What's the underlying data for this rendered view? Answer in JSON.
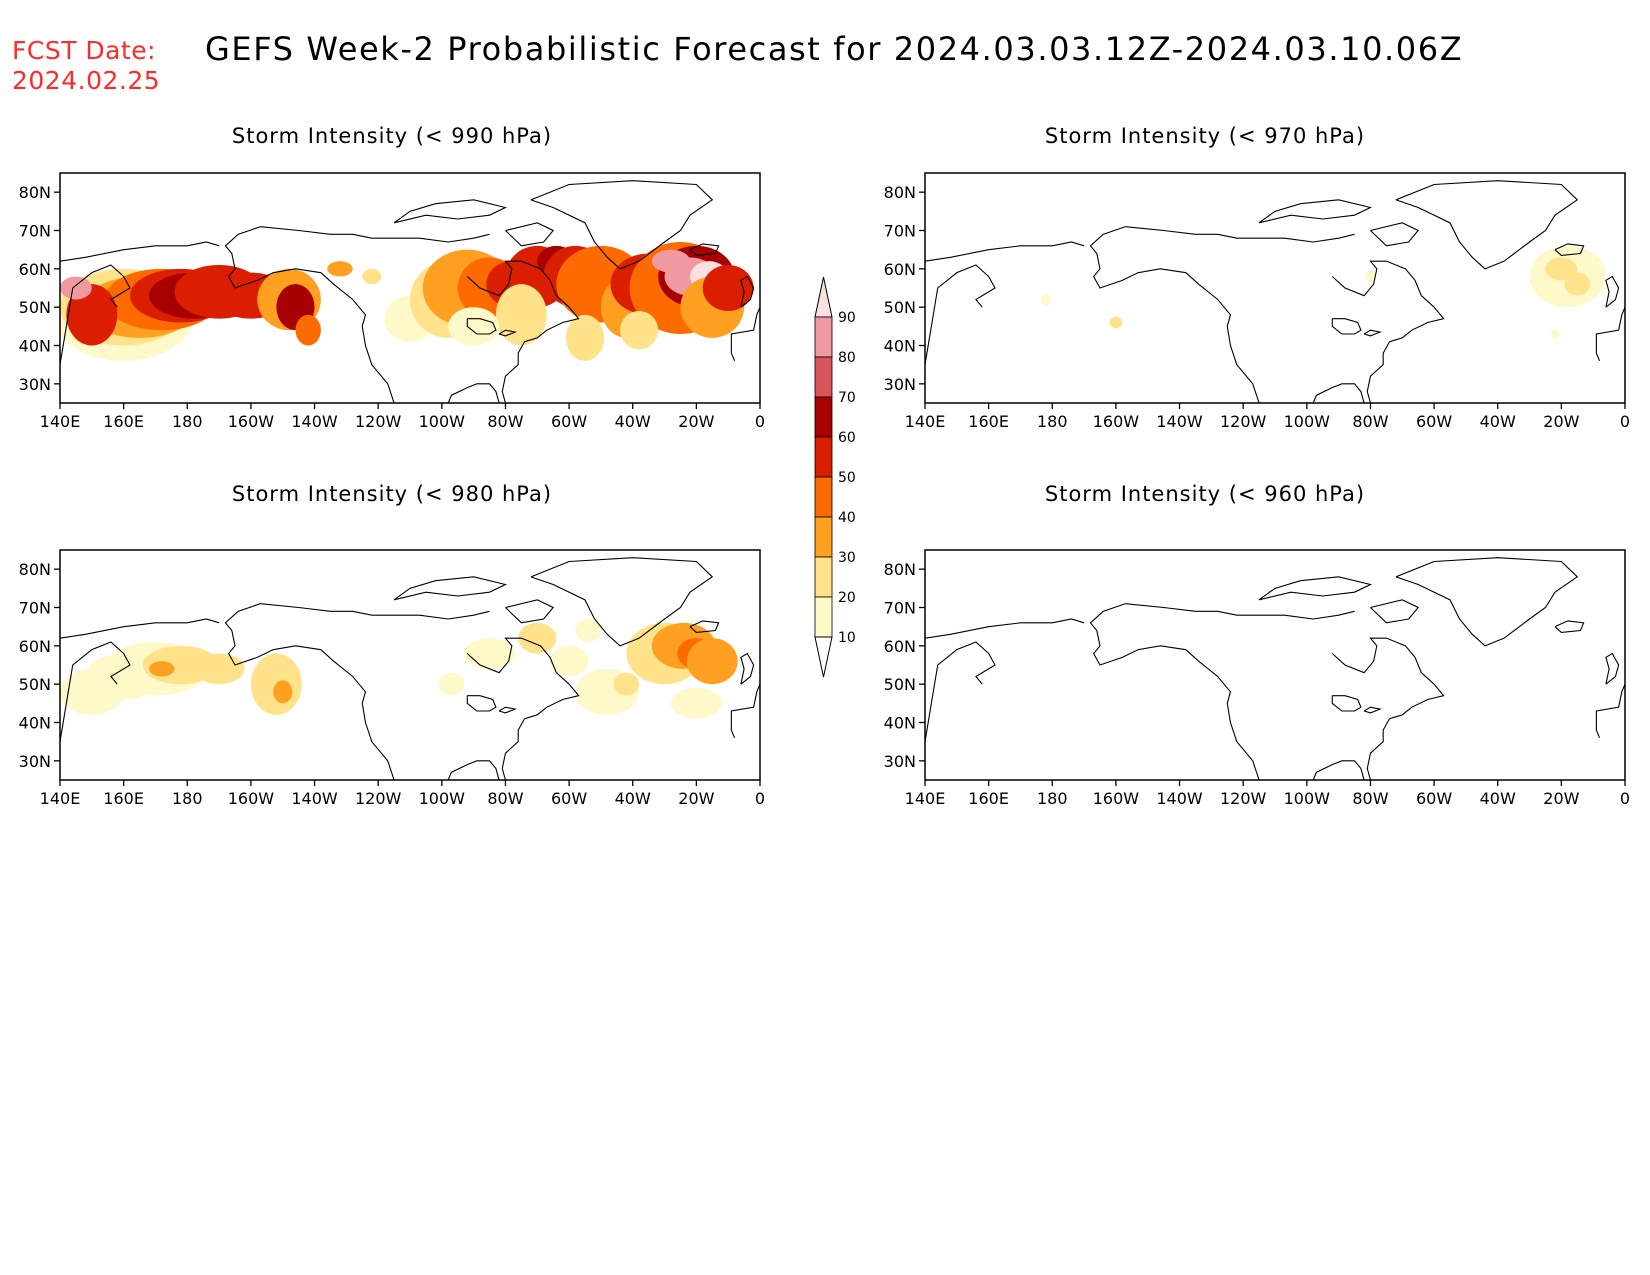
{
  "header": {
    "fcst_label": "FCST Date:",
    "fcst_date": "2024.02.25",
    "title": "GEFS Week-2 Probabilistic Forecast for 2024.03.03.12Z-2024.03.10.06Z"
  },
  "axes": {
    "lon_labels": [
      "140E",
      "160E",
      "180",
      "160W",
      "140W",
      "120W",
      "100W",
      "80W",
      "60W",
      "40W",
      "20W",
      "0"
    ],
    "lat_labels": [
      "80N",
      "70N",
      "60N",
      "50N",
      "40N",
      "30N"
    ]
  },
  "panels": [
    {
      "id": "p990",
      "title": "Storm Intensity (< 990 hPa)",
      "intensity": "high"
    },
    {
      "id": "p970",
      "title": "Storm Intensity (< 970 hPa)",
      "intensity": "low"
    },
    {
      "id": "p980",
      "title": "Storm Intensity (< 980 hPa)",
      "intensity": "medium"
    },
    {
      "id": "p960",
      "title": "Storm Intensity (< 960 hPa)",
      "intensity": "none"
    }
  ],
  "legend": {
    "levels": [
      "10",
      "20",
      "30",
      "40",
      "50",
      "60",
      "70",
      "80",
      "90"
    ],
    "colors": [
      "#fff8c8",
      "#ffe28a",
      "#ffa020",
      "#fd6a00",
      "#dc1e00",
      "#a80000",
      "#d9545a",
      "#ee9aa0",
      "#fbe0e2"
    ]
  }
}
